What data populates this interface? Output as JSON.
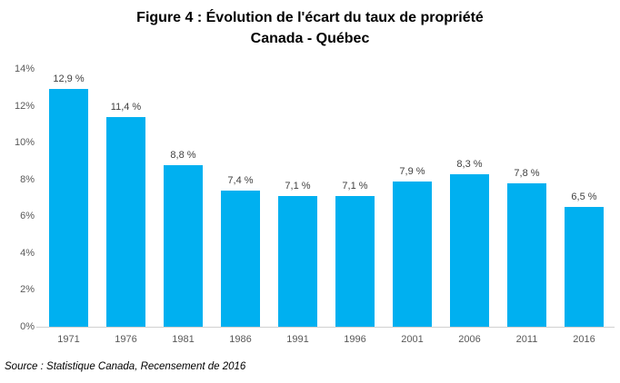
{
  "title": {
    "line1": "Figure 4 : Évolution de l'écart du taux de propriété",
    "line2": "Canada - Québec"
  },
  "source": "Source : Statistique Canada, Recensement de 2016",
  "colors": {
    "bar": "#00B0F0",
    "axis_line": "#D0D0D0",
    "value_label_text": "#404040",
    "tick_text": "#595959",
    "title_text": "#000000"
  },
  "chart_data": {
    "type": "bar",
    "title": "Figure 4 : Évolution de l'écart du taux de propriété Canada - Québec",
    "categories": [
      "1971",
      "1976",
      "1981",
      "1986",
      "1991",
      "1996",
      "2001",
      "2006",
      "2011",
      "2016"
    ],
    "values": [
      12.9,
      11.4,
      8.8,
      7.4,
      7.1,
      7.1,
      7.9,
      8.3,
      7.8,
      6.5
    ],
    "value_labels": [
      "12,9 %",
      "11,4 %",
      "8,8 %",
      "7,4 %",
      "7,1 %",
      "7,1 %",
      "7,9 %",
      "8,3 %",
      "7,8 %",
      "6,5 %"
    ],
    "xlabel": "",
    "ylabel": "",
    "ylim": [
      0,
      14
    ],
    "ytick_values": [
      0,
      2,
      4,
      6,
      8,
      10,
      12,
      14
    ],
    "ytick_labels": [
      "0%",
      "2%",
      "4%",
      "6%",
      "8%",
      "10%",
      "12%",
      "14%"
    ],
    "grid": false,
    "legend": false
  }
}
